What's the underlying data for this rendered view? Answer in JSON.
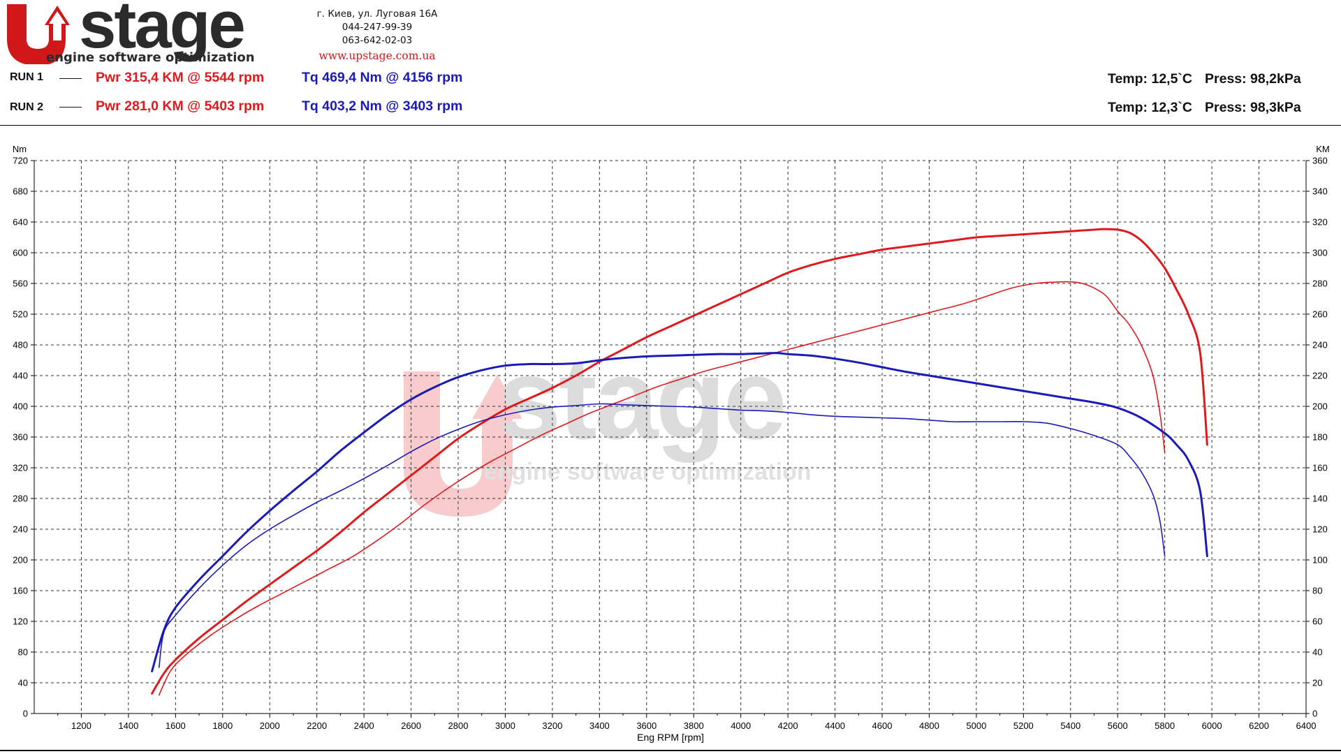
{
  "header": {
    "logo_word": "stage",
    "logo_tagline": "engine software optimization",
    "address_lines": [
      "г. Киев, ул. Луговая 16А",
      "044-247-99-39",
      "063-642-02-03"
    ],
    "website": "www.upstage.com.ua",
    "colors": {
      "brand_red": "#d11818",
      "brand_dark": "#2b2b2b"
    }
  },
  "runs": [
    {
      "label": "RUN 1",
      "power": "Pwr  315,4 KM @ 5544 rpm",
      "torque": "Tq 469,4 Nm @ 4156 rpm",
      "temp": "Temp: 12,5`C",
      "press": "Press: 98,2kPa"
    },
    {
      "label": "RUN 2",
      "power": "Pwr  281,0 KM @ 5403 rpm",
      "torque": "Tq 403,2 Nm @ 3403 rpm",
      "temp": "Temp: 12,3`C",
      "press": "Press: 98,3kPa"
    }
  ],
  "chart_data": {
    "type": "line",
    "xlabel": "Eng RPM [rpm]",
    "ylabel_left": "Nm",
    "ylabel_right": "KM",
    "xlim": [
      1000,
      6400
    ],
    "ylim_left": [
      0,
      720
    ],
    "ylim_right": [
      0,
      360
    ],
    "x_ticks": [
      1200,
      1400,
      1600,
      1800,
      2000,
      2200,
      2400,
      2600,
      2800,
      3000,
      3200,
      3400,
      3600,
      3800,
      4000,
      4200,
      4400,
      4600,
      4800,
      5000,
      5200,
      5400,
      5600,
      5800,
      6000,
      6200,
      6400
    ],
    "y_ticks_left": [
      0,
      40,
      80,
      120,
      160,
      200,
      240,
      280,
      320,
      360,
      400,
      440,
      480,
      520,
      560,
      600,
      640,
      680,
      720
    ],
    "y_ticks_right": [
      0,
      20,
      40,
      60,
      80,
      100,
      120,
      140,
      160,
      180,
      200,
      220,
      240,
      260,
      280,
      300,
      320,
      340,
      360
    ],
    "grid": true,
    "watermark": {
      "word": "stage",
      "tagline": "engine software optimization"
    },
    "series": [
      {
        "name": "Pwr",
        "axis": "right",
        "color": "#e0191c",
        "width": 3,
        "x": [
          1500,
          1550,
          1600,
          1700,
          1800,
          1900,
          2000,
          2100,
          2200,
          2300,
          2400,
          2500,
          2600,
          2700,
          2800,
          2900,
          3000,
          3100,
          3200,
          3300,
          3400,
          3500,
          3600,
          3700,
          3800,
          3900,
          4000,
          4100,
          4200,
          4300,
          4400,
          4500,
          4600,
          4700,
          4800,
          4900,
          5000,
          5100,
          5200,
          5300,
          5400,
          5500,
          5544,
          5600,
          5650,
          5700,
          5750,
          5800,
          5850,
          5900,
          5950,
          5980
        ],
        "y": [
          13,
          26,
          35,
          49,
          61,
          73,
          84,
          95,
          106,
          118,
          131,
          143,
          155,
          167,
          179,
          189,
          198,
          205,
          212,
          220,
          229,
          237,
          245,
          252,
          259,
          266,
          273,
          280,
          287,
          292,
          296,
          299,
          302,
          304,
          306,
          308,
          310,
          311,
          312,
          313,
          314,
          315,
          315.4,
          315,
          313,
          308,
          300,
          290,
          276,
          260,
          235,
          175
        ]
      },
      {
        "name": "Pwr",
        "axis": "right",
        "color": "#e0191c",
        "width": 1.6,
        "x": [
          1530,
          1580,
          1650,
          1750,
          1850,
          1950,
          2050,
          2150,
          2250,
          2350,
          2450,
          2550,
          2650,
          2750,
          2850,
          2950,
          3050,
          3150,
          3250,
          3350,
          3450,
          3550,
          3650,
          3750,
          3850,
          3950,
          4050,
          4150,
          4250,
          4350,
          4450,
          4550,
          4650,
          4750,
          4850,
          4950,
          5050,
          5150,
          5250,
          5350,
          5403,
          5450,
          5500,
          5550,
          5600,
          5650,
          5700,
          5750,
          5780,
          5800
        ],
        "y": [
          12,
          28,
          39,
          51,
          61,
          70,
          78,
          86,
          94,
          102,
          112,
          123,
          135,
          146,
          156,
          165,
          173,
          181,
          188,
          195,
          201,
          207,
          213,
          218,
          223,
          227,
          231,
          235,
          239,
          243,
          247,
          251,
          255,
          259,
          263,
          267,
          272,
          277,
          280,
          281,
          281,
          280,
          277,
          272,
          262,
          253,
          240,
          220,
          195,
          170
        ]
      },
      {
        "name": "Tq",
        "axis": "left",
        "color": "#1a1ab8",
        "width": 3,
        "x": [
          1500,
          1550,
          1600,
          1700,
          1800,
          1900,
          2000,
          2100,
          2200,
          2300,
          2400,
          2500,
          2600,
          2700,
          2800,
          2900,
          3000,
          3100,
          3200,
          3300,
          3400,
          3500,
          3600,
          3700,
          3800,
          3900,
          4000,
          4100,
          4156,
          4200,
          4300,
          4400,
          4500,
          4600,
          4700,
          4800,
          4900,
          5000,
          5100,
          5200,
          5300,
          5400,
          5500,
          5600,
          5700,
          5800,
          5850,
          5900,
          5950,
          5980
        ],
        "y": [
          55,
          108,
          138,
          174,
          205,
          236,
          264,
          290,
          315,
          342,
          366,
          389,
          409,
          425,
          438,
          447,
          453,
          455,
          455,
          456,
          460,
          463,
          465,
          466,
          467,
          468,
          468,
          469,
          469.4,
          468,
          466,
          462,
          457,
          451,
          445,
          440,
          435,
          430,
          425,
          420,
          415,
          410,
          405,
          398,
          385,
          365,
          350,
          330,
          290,
          205
        ]
      },
      {
        "name": "Tq",
        "axis": "left",
        "color": "#1a1ab8",
        "width": 1.6,
        "x": [
          1530,
          1550,
          1600,
          1700,
          1800,
          1900,
          2000,
          2100,
          2200,
          2300,
          2400,
          2500,
          2600,
          2700,
          2800,
          2900,
          3000,
          3100,
          3200,
          3300,
          3403,
          3500,
          3600,
          3700,
          3800,
          3900,
          4000,
          4100,
          4200,
          4300,
          4400,
          4500,
          4600,
          4700,
          4800,
          4900,
          5000,
          5100,
          5200,
          5300,
          5400,
          5500,
          5600,
          5650,
          5700,
          5750,
          5780,
          5800
        ],
        "y": [
          60,
          105,
          128,
          163,
          193,
          219,
          240,
          258,
          275,
          290,
          306,
          323,
          341,
          357,
          370,
          381,
          389,
          395,
          399,
          401,
          403.2,
          402,
          401,
          400,
          399,
          397,
          395,
          394,
          392,
          389,
          387,
          386,
          385,
          384,
          382,
          380,
          380,
          380,
          380,
          378,
          371,
          362,
          350,
          335,
          315,
          285,
          250,
          205
        ]
      }
    ]
  }
}
